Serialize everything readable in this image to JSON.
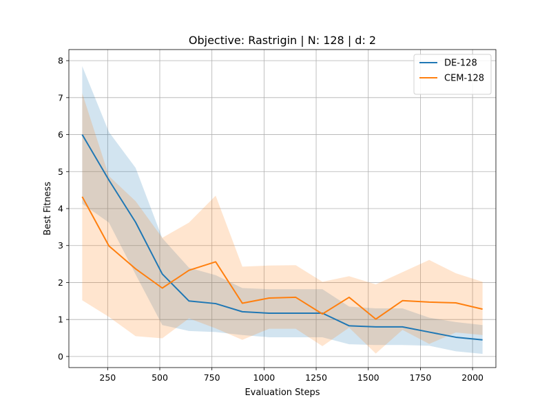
{
  "chart_data": {
    "type": "line",
    "title": "Objective: Rastrigin | N: 128 | d: 2",
    "xlabel": "Evaluation Steps",
    "ylabel": "Best Fitness",
    "xlim": [
      64,
      2112
    ],
    "ylim": [
      -0.3,
      8.3
    ],
    "xticks": [
      250,
      500,
      750,
      1000,
      1250,
      1500,
      1750,
      2000
    ],
    "yticks": [
      0,
      1,
      2,
      3,
      4,
      5,
      6,
      7,
      8
    ],
    "grid": true,
    "legend_position": "top-right",
    "x": [
      128,
      256,
      384,
      512,
      640,
      768,
      896,
      1024,
      1152,
      1280,
      1408,
      1536,
      1664,
      1792,
      1920,
      2048
    ],
    "series": [
      {
        "name": "DE-128",
        "color": "#1f77b4",
        "values": [
          6.0,
          4.77,
          3.63,
          2.23,
          1.5,
          1.43,
          1.21,
          1.17,
          1.17,
          1.17,
          0.83,
          0.8,
          0.8,
          0.66,
          0.52,
          0.45
        ],
        "lower": [
          4.13,
          3.62,
          2.22,
          0.85,
          0.69,
          0.66,
          0.58,
          0.52,
          0.52,
          0.52,
          0.33,
          0.31,
          0.31,
          0.29,
          0.14,
          0.07
        ],
        "upper": [
          7.85,
          6.07,
          5.1,
          3.2,
          2.4,
          2.2,
          1.85,
          1.82,
          1.82,
          1.82,
          1.35,
          1.3,
          1.3,
          1.05,
          0.93,
          0.85
        ]
      },
      {
        "name": "CEM-128",
        "color": "#ff7f0e",
        "values": [
          4.32,
          2.99,
          2.37,
          1.85,
          2.33,
          2.56,
          1.44,
          1.58,
          1.6,
          1.15,
          1.6,
          1.01,
          1.51,
          1.47,
          1.45,
          1.28
        ],
        "lower": [
          1.52,
          1.07,
          0.55,
          0.49,
          1.03,
          0.76,
          0.45,
          0.75,
          0.75,
          0.28,
          0.78,
          0.08,
          0.72,
          0.34,
          0.65,
          0.58
        ],
        "upper": [
          7.12,
          4.88,
          4.2,
          3.21,
          3.62,
          4.35,
          2.43,
          2.46,
          2.47,
          2.02,
          2.17,
          1.95,
          2.28,
          2.61,
          2.25,
          2.02
        ]
      }
    ]
  }
}
